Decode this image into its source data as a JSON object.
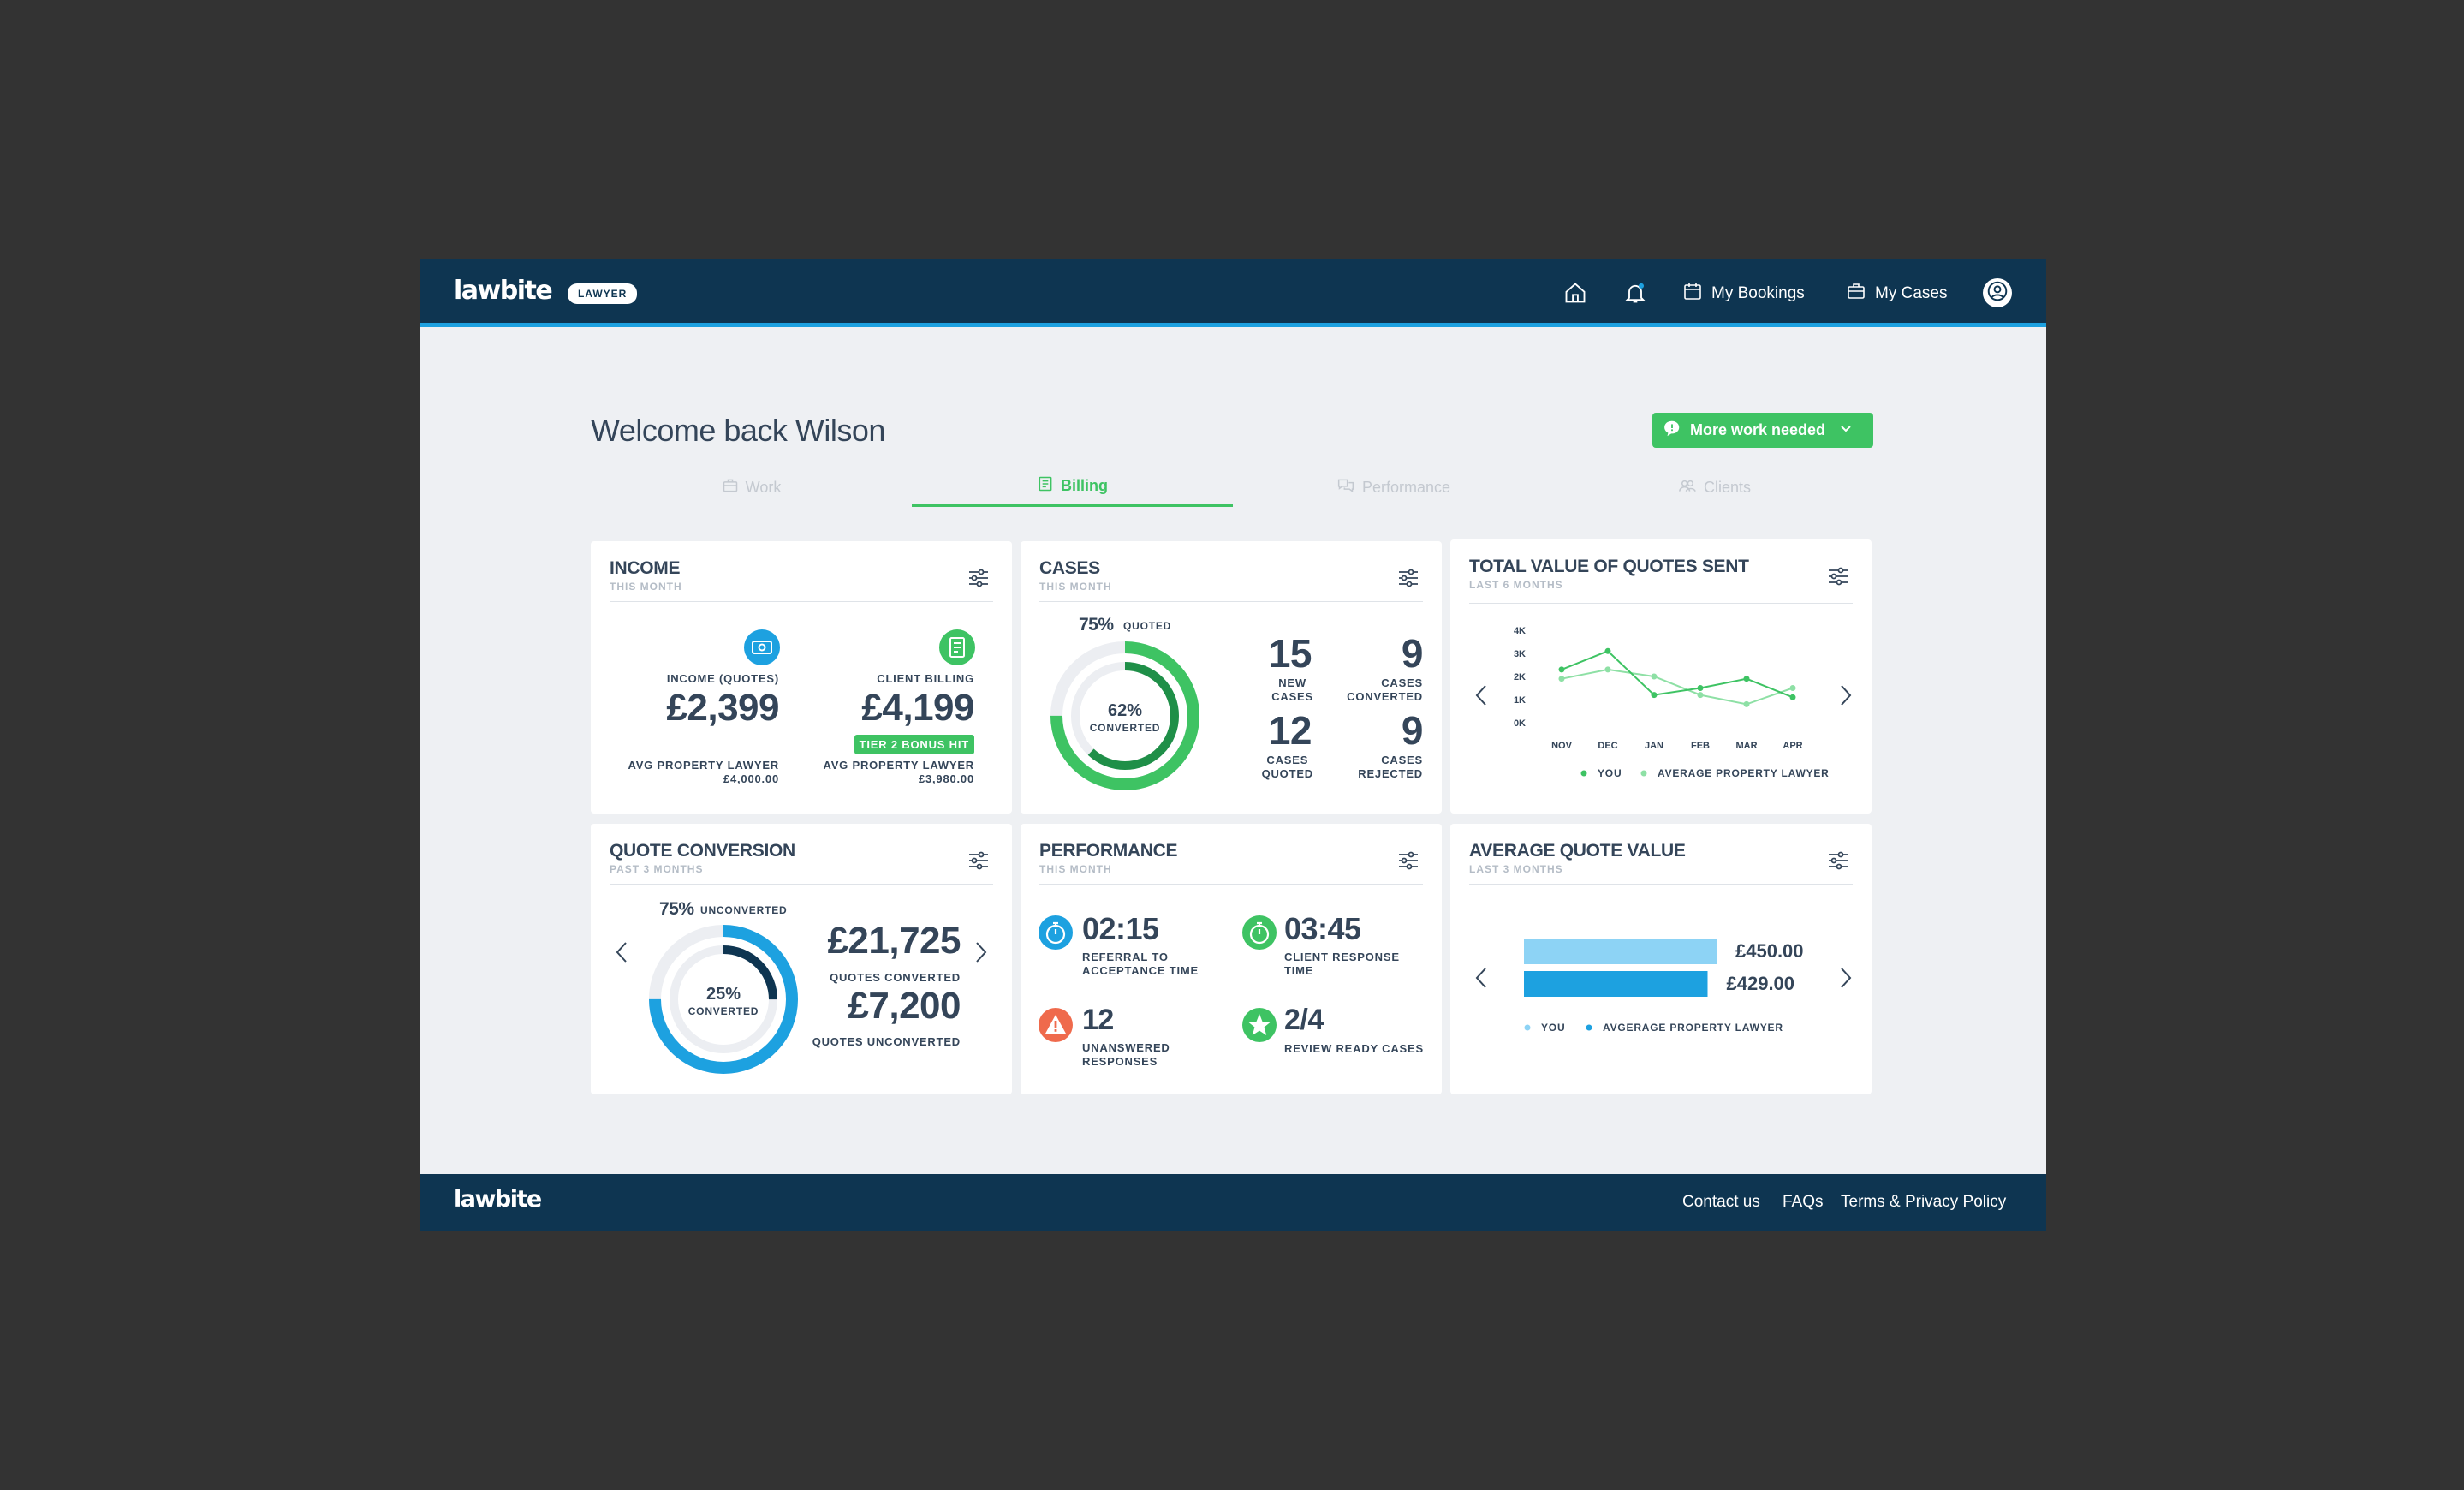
{
  "header": {
    "brand": "lawbite",
    "role_badge": "LAWYER",
    "nav": {
      "bookings": "My Bookings",
      "cases": "My Cases"
    },
    "icons": [
      "home-icon",
      "bell-icon",
      "calendar-icon",
      "briefcase-icon",
      "user-icon"
    ]
  },
  "welcome": "Welcome back Wilson",
  "status_button": "More work needed",
  "tabs": [
    {
      "label": "Work",
      "active": false
    },
    {
      "label": "Billing",
      "active": true
    },
    {
      "label": "Performance",
      "active": false
    },
    {
      "label": "Clients",
      "active": false
    }
  ],
  "income": {
    "title": "INCOME",
    "period": "THIS MONTH",
    "quotes_label": "INCOME (QUOTES)",
    "quotes_value": "£2,399",
    "billing_label": "CLIENT BILLING",
    "billing_value": "£4,199",
    "bonus_badge": "TIER 2 BONUS HIT",
    "avg_label_1": "AVG PROPERTY LAWYER",
    "avg_value_1": "£4,000.00",
    "avg_label_2": "AVG PROPERTY LAWYER",
    "avg_value_2": "£3,980.00"
  },
  "cases": {
    "title": "CASES",
    "period": "THIS MONTH",
    "quoted_pct": "75%",
    "quoted_label": "QUOTED",
    "converted_pct": "62%",
    "converted_label": "CONVERTED",
    "new_cases": "15",
    "new_label": "NEW\nCASES",
    "converted": "9",
    "converted_cases_label": "CASES\nCONVERTED",
    "quoted": "12",
    "quoted_cases_label": "CASES\nQUOTED",
    "rejected": "9",
    "rejected_label": "CASES\nREJECTED",
    "ring_outer_fraction": 0.75,
    "ring_inner_fraction": 0.62
  },
  "quotes_total": {
    "title": "TOTAL VALUE OF QUOTES SENT",
    "period": "LAST 6 MONTHS",
    "chart_data": {
      "type": "line",
      "x": [
        "NOV",
        "DEC",
        "JAN",
        "FEB",
        "MAR",
        "APR"
      ],
      "y_ticks": [
        "0K",
        "1K",
        "2K",
        "3K",
        "4K"
      ],
      "ylim": [
        0,
        4000
      ],
      "series": [
        {
          "name": "YOU",
          "color": "#3ec363",
          "values": [
            2300,
            3100,
            1200,
            1500,
            1900,
            1100
          ]
        },
        {
          "name": "AVERAGE PROPERTY LAWYER",
          "color": "#8ee0a5",
          "values": [
            1900,
            2300,
            2000,
            1200,
            800,
            1500
          ]
        }
      ],
      "legend_position": "bottom"
    }
  },
  "quote_conversion": {
    "title": "QUOTE CONVERSION",
    "period": "PAST 3 MONTHS",
    "unconverted_pct": "75%",
    "unconverted_label": "UNCONVERTED",
    "converted_pct": "25%",
    "converted_label": "CONVERTED",
    "quotes_converted_value": "£21,725",
    "quotes_converted_label": "QUOTES CONVERTED",
    "quotes_unconverted_value": "£7,200",
    "quotes_unconverted_label": "QUOTES UNCONVERTED",
    "ring_outer_fraction": 0.75,
    "ring_inner_fraction": 0.25
  },
  "performance": {
    "title": "PERFORMANCE",
    "period": "THIS MONTH",
    "items": [
      {
        "value": "02:15",
        "label": "REFERRAL TO\nACCEPTANCE TIME",
        "icon": "stopwatch-icon",
        "color": "#1da1e0"
      },
      {
        "value": "03:45",
        "label": "CLIENT RESPONSE\nTIME",
        "icon": "stopwatch-icon",
        "color": "#3ec363"
      },
      {
        "value": "12",
        "label": "UNANSWERED\nRESPONSES",
        "icon": "warning-icon",
        "color": "#ef6a4c"
      },
      {
        "value": "2/4",
        "label": "REVIEW READY CASES",
        "icon": "star-icon",
        "color": "#3ec363"
      }
    ]
  },
  "avg_quote": {
    "title": "AVERAGE QUOTE VALUE",
    "period": "LAST 3 MONTHS",
    "chart_data": {
      "type": "bar",
      "orientation": "horizontal",
      "categories": [
        "YOU",
        "AVGERAGE PROPERTY LAWYER"
      ],
      "values": [
        450.0,
        429.0
      ],
      "labels": [
        "£450.00",
        "£429.00"
      ],
      "colors": [
        "#8dd3f5",
        "#1da1e0"
      ],
      "xlim": [
        0,
        460
      ],
      "legend_position": "bottom"
    }
  },
  "footer": {
    "brand": "lawbite",
    "links": [
      "Contact us",
      "FAQs",
      "Terms & Privacy Policy"
    ]
  },
  "colors": {
    "navy": "#0e3551",
    "accent_blue": "#1da1e0",
    "green": "#3ec363",
    "text": "#344559",
    "muted": "#b4bcc6",
    "ring_track": "#eceef2"
  }
}
